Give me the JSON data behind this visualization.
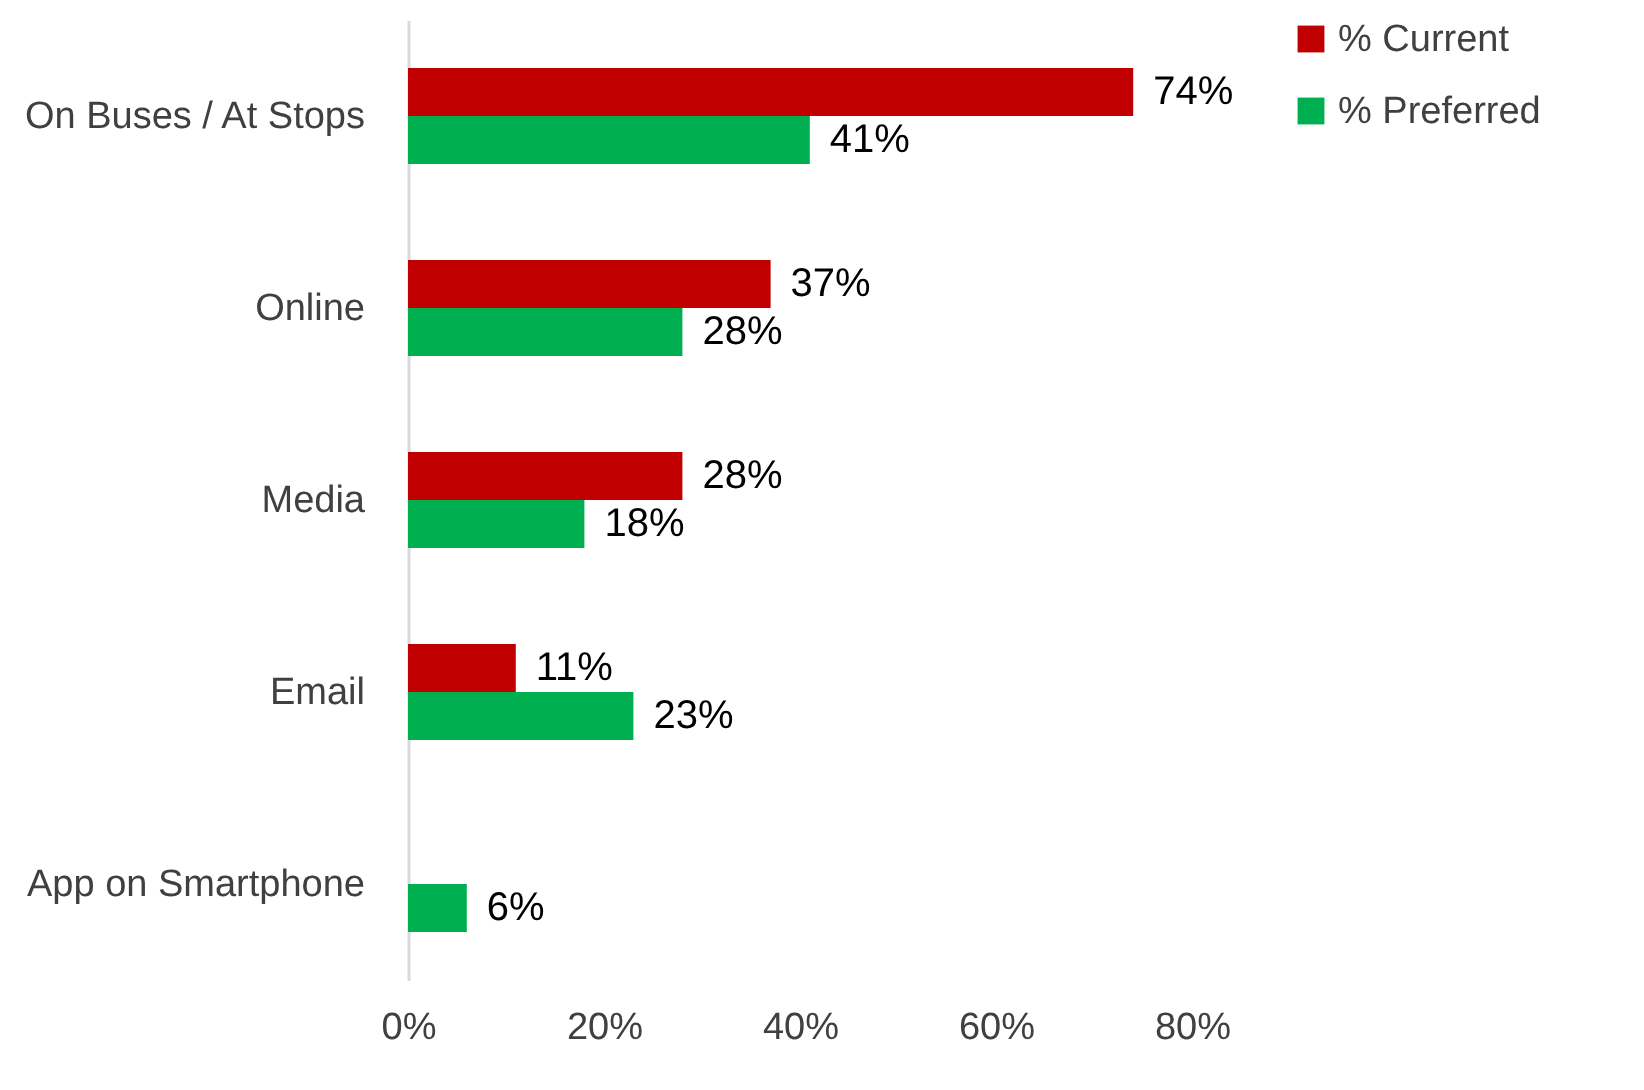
{
  "chart_data": {
    "type": "bar",
    "orientation": "horizontal",
    "categories": [
      "On Buses / At Stops",
      "Online",
      "Media",
      "Email",
      "App on Smartphone"
    ],
    "series": [
      {
        "name": "% Current",
        "color": "#c00000",
        "values": [
          74,
          37,
          28,
          11,
          null
        ],
        "value_labels": [
          "74%",
          "37%",
          "28%",
          "11%",
          null
        ]
      },
      {
        "name": "% Preferred",
        "color": "#00b050",
        "values": [
          41,
          28,
          18,
          23,
          6
        ],
        "value_labels": [
          "41%",
          "28%",
          "18%",
          "23%",
          "6%"
        ]
      }
    ],
    "xlim": [
      0,
      80
    ],
    "xticks": [
      {
        "value": 0,
        "label": "0%"
      },
      {
        "value": 20,
        "label": "20%"
      },
      {
        "value": 40,
        "label": "40%"
      },
      {
        "value": 60,
        "label": "60%"
      },
      {
        "value": 80,
        "label": "80%"
      }
    ],
    "grid": false,
    "legend": "right"
  }
}
